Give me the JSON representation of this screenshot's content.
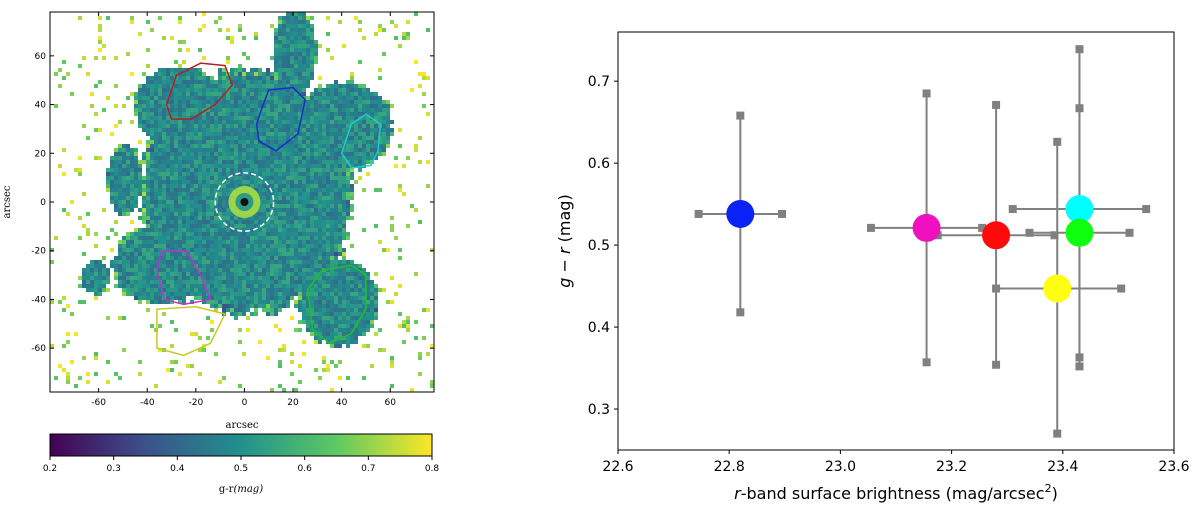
{
  "chart_data": [
    {
      "type": "heatmap",
      "xlabel": "arcsec",
      "ylabel": "arcsec",
      "xlim": [
        -80,
        78
      ],
      "ylim": [
        -78,
        78
      ],
      "xticks": [
        -60,
        -40,
        -20,
        0,
        20,
        40,
        60
      ],
      "yticks": [
        -60,
        -40,
        -20,
        0,
        20,
        40,
        60
      ],
      "colorbar": {
        "label": "g-r",
        "label_unit": "(mag)",
        "range": [
          0.2,
          0.8
        ],
        "ticks": [
          0.2,
          0.3,
          0.4,
          0.5,
          0.6,
          0.7,
          0.8
        ],
        "colormap": [
          "#440154",
          "#3b528b",
          "#21908d",
          "#5dc963",
          "#fde725"
        ]
      },
      "regions": [
        {
          "color": "#b22222",
          "points": [
            [
              -32,
              40
            ],
            [
              -28,
              52
            ],
            [
              -18,
              57
            ],
            [
              -8,
              56
            ],
            [
              -5,
              48
            ],
            [
              -12,
              40
            ],
            [
              -22,
              34
            ],
            [
              -30,
              34
            ]
          ]
        },
        {
          "color": "#1530c8",
          "points": [
            [
              7,
              38
            ],
            [
              10,
              46
            ],
            [
              20,
              47
            ],
            [
              25,
              42
            ],
            [
              22,
              28
            ],
            [
              13,
              21
            ],
            [
              6,
              25
            ],
            [
              5,
              32
            ]
          ]
        },
        {
          "color": "#20c8d8",
          "points": [
            [
              40,
              20
            ],
            [
              44,
              32
            ],
            [
              50,
              36
            ],
            [
              56,
              32
            ],
            [
              55,
              21
            ],
            [
              52,
              15
            ],
            [
              44,
              14
            ]
          ]
        },
        {
          "color": "#c030d0",
          "points": [
            [
              -36,
              -28
            ],
            [
              -33,
              -40
            ],
            [
              -25,
              -42
            ],
            [
              -14,
              -40
            ],
            [
              -18,
              -30
            ],
            [
              -24,
              -20
            ],
            [
              -34,
              -20
            ]
          ]
        },
        {
          "color": "#c8c820",
          "points": [
            [
              -36,
              -44
            ],
            [
              -36,
              -60
            ],
            [
              -25,
              -63
            ],
            [
              -14,
              -58
            ],
            [
              -8,
              -46
            ],
            [
              -20,
              -43
            ]
          ]
        },
        {
          "color": "#20c020",
          "points": [
            [
              26,
              -36
            ],
            [
              32,
              -28
            ],
            [
              44,
              -26
            ],
            [
              50,
              -30
            ],
            [
              50,
              -44
            ],
            [
              44,
              -54
            ],
            [
              35,
              -58
            ],
            [
              28,
              -52
            ]
          ]
        }
      ],
      "center_circle": {
        "x": 0,
        "y": 0,
        "radius": 12
      }
    },
    {
      "type": "scatter",
      "xlabel_italic": "r",
      "xlabel": "-band surface brightness (mag/arcsec",
      "xlabel_sup": "2",
      "xlabel_end": ")",
      "ylabel_italic": "g − r",
      "ylabel": " (mag)",
      "xlim": [
        22.6,
        23.6
      ],
      "ylim": [
        0.25,
        0.76
      ],
      "xticks": [
        "22.6",
        "22.8",
        "23.0",
        "23.2",
        "23.4",
        "23.6"
      ],
      "yticks": [
        "0.3",
        "0.4",
        "0.5",
        "0.6",
        "0.7"
      ],
      "points": [
        {
          "color": "#0a22f5",
          "x": 22.82,
          "y": 0.538,
          "xerr": [
            22.745,
            22.895
          ],
          "yerr": [
            0.418,
            0.658
          ]
        },
        {
          "color": "#f010c0",
          "x": 23.155,
          "y": 0.521,
          "xerr": [
            23.055,
            23.255
          ],
          "yerr": [
            0.357,
            0.685
          ]
        },
        {
          "color": "#ff0a0a",
          "x": 23.28,
          "y": 0.512,
          "xerr": [
            23.175,
            23.385
          ],
          "yerr": [
            0.354,
            0.671
          ]
        },
        {
          "color": "#ffff10",
          "x": 23.39,
          "y": 0.447,
          "xerr": [
            23.28,
            23.505
          ],
          "yerr": [
            0.27,
            0.626
          ]
        },
        {
          "color": "#00ffff",
          "x": 23.43,
          "y": 0.544,
          "xerr": [
            23.31,
            23.55
          ],
          "yerr": [
            0.363,
            0.739
          ]
        },
        {
          "color": "#10ff10",
          "x": 23.43,
          "y": 0.515,
          "xerr": [
            23.34,
            23.52
          ],
          "yerr": [
            0.352,
            0.667
          ]
        }
      ],
      "errorbar_color": "#808080"
    }
  ]
}
